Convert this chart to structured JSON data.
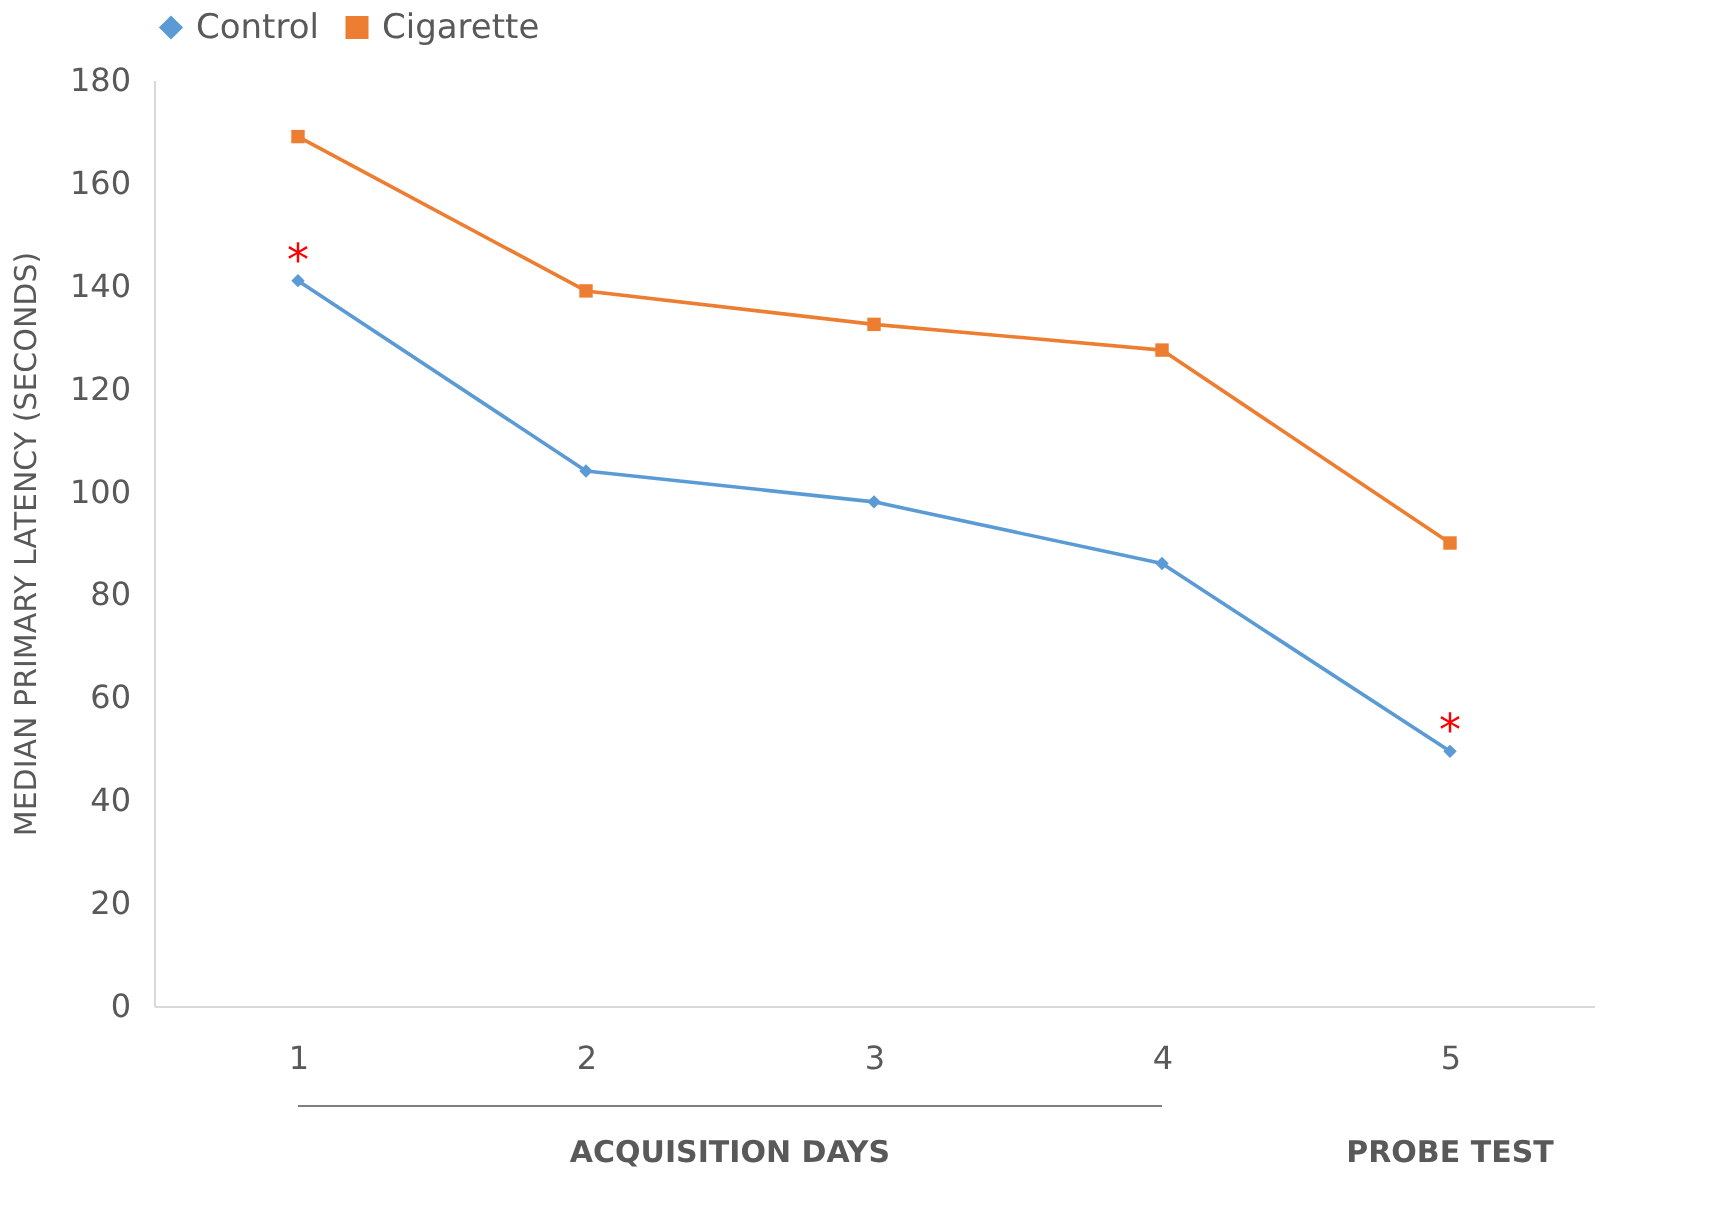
{
  "chart_data": {
    "type": "line",
    "ylabel": "MEDIAN PRIMARY LATENCY (SECONDS)",
    "categories": [
      "1",
      "2",
      "3",
      "4",
      "5"
    ],
    "series": [
      {
        "name": "Control",
        "color": "#5b9bd5",
        "marker": "diamond",
        "values": [
          141,
          104,
          98,
          86,
          49.5
        ]
      },
      {
        "name": "Cigarette",
        "color": "#ed7d31",
        "marker": "square",
        "values": [
          169,
          139,
          132.5,
          127.5,
          90
        ]
      }
    ],
    "ylim": [
      0,
      180
    ],
    "yticks": [
      0,
      20,
      40,
      60,
      80,
      100,
      120,
      140,
      160,
      180
    ],
    "grid": false,
    "legend": "top",
    "annotations": [
      "*",
      "*",
      "ACQUISITION DAYS",
      "PROBE TEST"
    ]
  }
}
